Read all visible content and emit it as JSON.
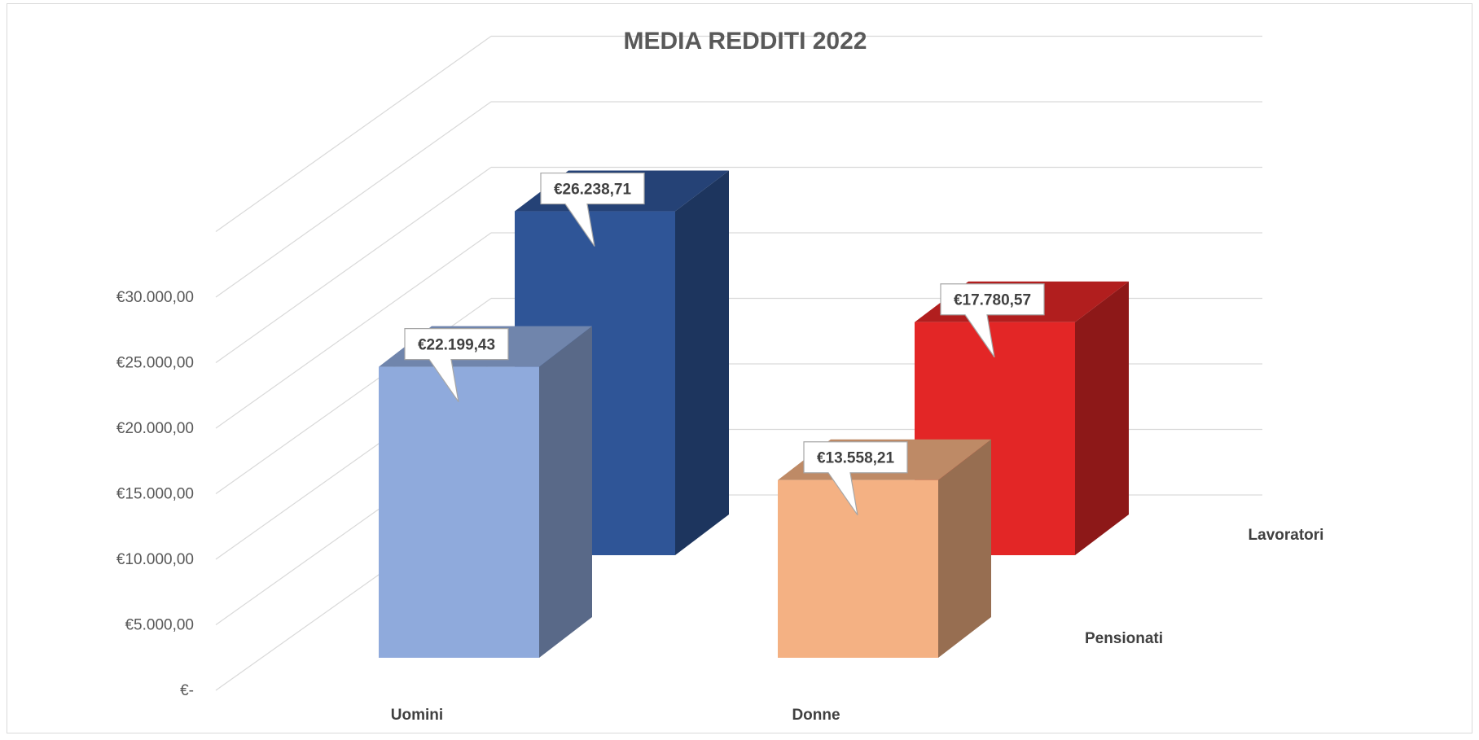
{
  "chart_data": {
    "type": "bar",
    "title": "MEDIA REDDITI 2022",
    "categories": [
      "Uomini",
      "Donne"
    ],
    "depth_categories": [
      "Pensionati",
      "Lavoratori"
    ],
    "series": [
      {
        "name": "Pensionati",
        "values": [
          22199.43,
          13558.21
        ],
        "labels": [
          "€22.199,43",
          "€13.558,21"
        ],
        "colors": [
          "#8faadc",
          "#f4b183"
        ]
      },
      {
        "name": "Lavoratori",
        "values": [
          26238.71,
          17780.57
        ],
        "labels": [
          "€26.238,71",
          "€17.780,57"
        ],
        "colors": [
          "#2f5597",
          "#e32626"
        ]
      }
    ],
    "yticks": [
      "€-",
      "€5.000,00",
      "€10.000,00",
      "€15.000,00",
      "€20.000,00",
      "€25.000,00",
      "€30.000,00"
    ],
    "ylim": [
      0,
      30000
    ],
    "grid": true,
    "legend": "none"
  }
}
